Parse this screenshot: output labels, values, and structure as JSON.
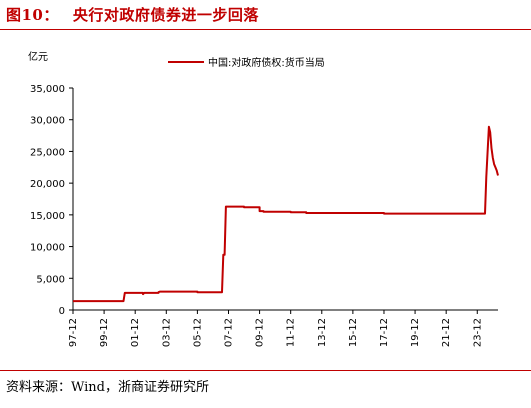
{
  "figure": {
    "label": "图10：",
    "title": "央行对政府债券进一步回落",
    "source": "资料来源：Wind，浙商证券研究所"
  },
  "colors": {
    "accent": "#c00000",
    "series": "#c00000"
  },
  "chart_data": {
    "type": "line",
    "unit_label": "亿元",
    "legend_position": "top-center",
    "grid": false,
    "ylim": [
      0,
      35000
    ],
    "y_ticks": [
      "0",
      "5,000",
      "10,000",
      "15,000",
      "20,000",
      "25,000",
      "30,000",
      "35,000"
    ],
    "y_tick_values": [
      0,
      5000,
      10000,
      15000,
      20000,
      25000,
      30000,
      35000
    ],
    "x_ticks": [
      "97-12",
      "99-12",
      "01-12",
      "03-12",
      "05-12",
      "07-12",
      "09-12",
      "11-12",
      "13-12",
      "15-12",
      "17-12",
      "19-12",
      "21-12",
      "23-12"
    ],
    "series": [
      {
        "name": "中国:对政府债权:货币当局",
        "x": [
          "1997-12",
          "1999-01",
          "2001-03",
          "2001-04",
          "2001-09",
          "2002-06",
          "2002-07",
          "2003-06",
          "2003-07",
          "2003-12",
          "2005-12",
          "2006-12",
          "2007-07",
          "2007-08",
          "2007-09",
          "2007-10",
          "2008-12",
          "2009-12",
          "2010-03",
          "2011-12",
          "2012-12",
          "2013-12",
          "2015-12",
          "2017-12",
          "2019-12",
          "2021-12",
          "2023-12",
          "2024-06",
          "2024-07",
          "2024-09",
          "2024-10",
          "2024-11",
          "2024-12",
          "2025-01",
          "2025-02",
          "2025-03",
          "2025-04"
        ],
        "values": [
          1400,
          1400,
          1400,
          2700,
          2700,
          2500,
          2700,
          2800,
          2900,
          2900,
          2800,
          2800,
          2800,
          8700,
          8700,
          16300,
          16200,
          15600,
          15500,
          15400,
          15300,
          15300,
          15300,
          15200,
          15200,
          15200,
          15200,
          15200,
          21000,
          28900,
          28000,
          25500,
          24000,
          23000,
          22500,
          22000,
          21200
        ]
      }
    ]
  }
}
